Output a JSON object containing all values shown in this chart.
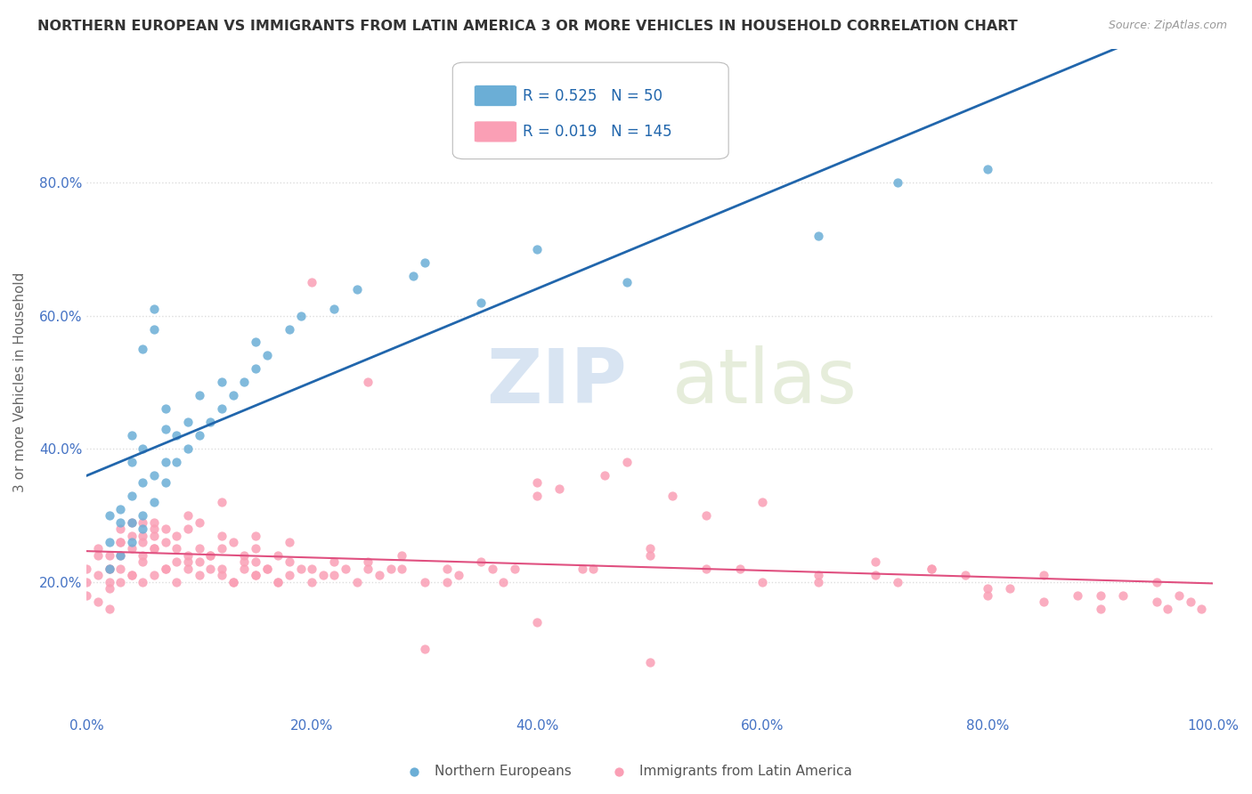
{
  "title": "NORTHERN EUROPEAN VS IMMIGRANTS FROM LATIN AMERICA 3 OR MORE VEHICLES IN HOUSEHOLD CORRELATION CHART",
  "source": "Source: ZipAtlas.com",
  "ylabel": "3 or more Vehicles in Household",
  "xlim": [
    0.0,
    1.0
  ],
  "ylim": [
    0.0,
    1.0
  ],
  "xticks": [
    0.0,
    0.2,
    0.4,
    0.6,
    0.8,
    1.0
  ],
  "yticks": [
    0.2,
    0.4,
    0.6,
    0.8
  ],
  "xticklabels": [
    "0.0%",
    "20.0%",
    "40.0%",
    "60.0%",
    "80.0%",
    "100.0%"
  ],
  "yticklabels": [
    "20.0%",
    "40.0%",
    "60.0%",
    "80.0%"
  ],
  "blue_R": 0.525,
  "blue_N": 50,
  "pink_R": 0.019,
  "pink_N": 145,
  "blue_color": "#6baed6",
  "pink_color": "#fa9fb5",
  "blue_line_color": "#2166ac",
  "pink_line_color": "#e05080",
  "background_color": "#ffffff",
  "grid_color": "#dddddd",
  "blue_x": [
    0.02,
    0.02,
    0.02,
    0.03,
    0.03,
    0.03,
    0.04,
    0.04,
    0.04,
    0.04,
    0.05,
    0.05,
    0.05,
    0.05,
    0.06,
    0.06,
    0.06,
    0.07,
    0.07,
    0.07,
    0.08,
    0.08,
    0.09,
    0.09,
    0.1,
    0.1,
    0.11,
    0.12,
    0.12,
    0.13,
    0.14,
    0.15,
    0.15,
    0.16,
    0.18,
    0.19,
    0.22,
    0.24,
    0.29,
    0.3,
    0.35,
    0.4,
    0.48,
    0.65,
    0.72,
    0.04,
    0.05,
    0.06,
    0.07,
    0.8
  ],
  "blue_y": [
    0.22,
    0.26,
    0.3,
    0.24,
    0.29,
    0.31,
    0.26,
    0.29,
    0.38,
    0.42,
    0.3,
    0.35,
    0.4,
    0.55,
    0.32,
    0.36,
    0.61,
    0.35,
    0.38,
    0.46,
    0.38,
    0.42,
    0.4,
    0.44,
    0.42,
    0.48,
    0.44,
    0.46,
    0.5,
    0.48,
    0.5,
    0.52,
    0.56,
    0.54,
    0.58,
    0.6,
    0.61,
    0.64,
    0.66,
    0.68,
    0.62,
    0.7,
    0.65,
    0.72,
    0.8,
    0.33,
    0.28,
    0.58,
    0.43,
    0.82
  ],
  "pink_x": [
    0.0,
    0.0,
    0.0,
    0.01,
    0.01,
    0.01,
    0.01,
    0.02,
    0.02,
    0.02,
    0.02,
    0.02,
    0.03,
    0.03,
    0.03,
    0.03,
    0.04,
    0.04,
    0.04,
    0.04,
    0.05,
    0.05,
    0.05,
    0.05,
    0.05,
    0.06,
    0.06,
    0.06,
    0.06,
    0.07,
    0.07,
    0.07,
    0.08,
    0.08,
    0.08,
    0.09,
    0.09,
    0.09,
    0.1,
    0.1,
    0.1,
    0.11,
    0.11,
    0.12,
    0.12,
    0.12,
    0.13,
    0.13,
    0.14,
    0.14,
    0.15,
    0.15,
    0.15,
    0.16,
    0.17,
    0.17,
    0.18,
    0.18,
    0.19,
    0.2,
    0.21,
    0.22,
    0.23,
    0.24,
    0.25,
    0.26,
    0.27,
    0.28,
    0.3,
    0.32,
    0.33,
    0.35,
    0.37,
    0.38,
    0.4,
    0.42,
    0.44,
    0.46,
    0.48,
    0.5,
    0.52,
    0.55,
    0.58,
    0.6,
    0.65,
    0.7,
    0.72,
    0.75,
    0.78,
    0.8,
    0.82,
    0.85,
    0.88,
    0.9,
    0.92,
    0.95,
    0.96,
    0.97,
    0.98,
    0.99,
    0.02,
    0.03,
    0.04,
    0.05,
    0.06,
    0.07,
    0.08,
    0.09,
    0.1,
    0.11,
    0.12,
    0.13,
    0.14,
    0.15,
    0.16,
    0.17,
    0.18,
    0.2,
    0.22,
    0.25,
    0.28,
    0.32,
    0.36,
    0.4,
    0.45,
    0.5,
    0.55,
    0.6,
    0.65,
    0.7,
    0.75,
    0.8,
    0.85,
    0.9,
    0.95,
    0.03,
    0.06,
    0.09,
    0.12,
    0.15,
    0.2,
    0.25,
    0.3,
    0.4,
    0.5
  ],
  "pink_y": [
    0.2,
    0.22,
    0.18,
    0.21,
    0.24,
    0.17,
    0.25,
    0.2,
    0.22,
    0.16,
    0.19,
    0.24,
    0.22,
    0.26,
    0.2,
    0.28,
    0.21,
    0.25,
    0.27,
    0.29,
    0.2,
    0.24,
    0.26,
    0.27,
    0.29,
    0.21,
    0.25,
    0.27,
    0.29,
    0.22,
    0.26,
    0.28,
    0.23,
    0.25,
    0.27,
    0.22,
    0.24,
    0.28,
    0.23,
    0.25,
    0.29,
    0.22,
    0.24,
    0.21,
    0.25,
    0.27,
    0.2,
    0.26,
    0.22,
    0.24,
    0.21,
    0.23,
    0.27,
    0.22,
    0.2,
    0.24,
    0.21,
    0.26,
    0.22,
    0.2,
    0.21,
    0.23,
    0.22,
    0.2,
    0.22,
    0.21,
    0.22,
    0.24,
    0.2,
    0.22,
    0.21,
    0.23,
    0.2,
    0.22,
    0.33,
    0.34,
    0.22,
    0.36,
    0.38,
    0.24,
    0.33,
    0.3,
    0.22,
    0.32,
    0.2,
    0.21,
    0.2,
    0.22,
    0.21,
    0.18,
    0.19,
    0.17,
    0.18,
    0.16,
    0.18,
    0.17,
    0.16,
    0.18,
    0.17,
    0.16,
    0.22,
    0.24,
    0.21,
    0.23,
    0.25,
    0.22,
    0.2,
    0.23,
    0.21,
    0.24,
    0.22,
    0.2,
    0.23,
    0.21,
    0.22,
    0.2,
    0.23,
    0.22,
    0.21,
    0.23,
    0.22,
    0.2,
    0.22,
    0.35,
    0.22,
    0.25,
    0.22,
    0.2,
    0.21,
    0.23,
    0.22,
    0.19,
    0.21,
    0.18,
    0.2,
    0.26,
    0.28,
    0.3,
    0.32,
    0.25,
    0.65,
    0.5,
    0.1,
    0.14,
    0.08
  ]
}
